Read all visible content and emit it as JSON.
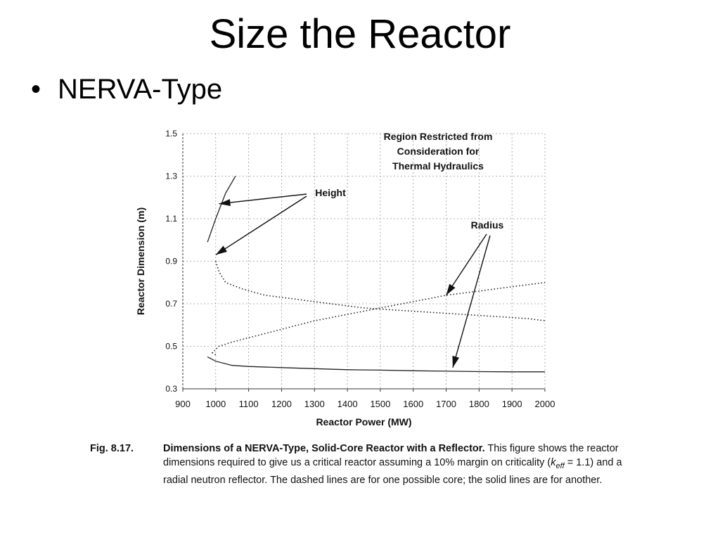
{
  "slide": {
    "title": "Size the Reactor",
    "bullet": "NERVA-Type"
  },
  "chart_data": {
    "type": "line",
    "xlabel": "Reactor Power (MW)",
    "ylabel": "Reactor Dimension (m)",
    "xlim": [
      900,
      2000
    ],
    "ylim": [
      0.3,
      1.5
    ],
    "x_ticks": [
      "900",
      "1000",
      "1100",
      "1200",
      "1300",
      "1400",
      "1500",
      "1600",
      "1700",
      "1800",
      "1900",
      "2000"
    ],
    "y_ticks": [
      "0.3",
      "0.5",
      "0.7",
      "0.9",
      "1.1",
      "1.3",
      "1.5"
    ],
    "grid": true,
    "series": [
      {
        "style": "dashed",
        "x": [
          1000,
          1010,
          1030,
          1080,
          1150,
          1250,
          1350,
          1450,
          1550,
          1650,
          1750,
          1850,
          1950,
          2000
        ],
        "y": [
          0.9,
          0.85,
          0.8,
          0.77,
          0.74,
          0.72,
          0.7,
          0.68,
          0.67,
          0.66,
          0.65,
          0.64,
          0.63,
          0.62
        ]
      },
      {
        "style": "dashed",
        "x": [
          1000,
          990,
          1010,
          1050,
          1100,
          1200,
          1300,
          1400,
          1500,
          1600,
          1700,
          1800,
          1900,
          2000
        ],
        "y": [
          0.46,
          0.47,
          0.5,
          0.52,
          0.54,
          0.58,
          0.62,
          0.65,
          0.68,
          0.71,
          0.74,
          0.76,
          0.78,
          0.8
        ]
      },
      {
        "style": "solid",
        "x": [
          975,
          1000,
          1030,
          1060
        ],
        "y": [
          0.99,
          1.1,
          1.22,
          1.3
        ]
      },
      {
        "style": "solid",
        "x": [
          975,
          1000,
          1050,
          1100,
          1200,
          1300,
          1400,
          1500,
          1600,
          1700,
          1800,
          1900,
          2000
        ],
        "y": [
          0.45,
          0.43,
          0.41,
          0.405,
          0.4,
          0.395,
          0.39,
          0.388,
          0.385,
          0.383,
          0.381,
          0.38,
          0.38
        ]
      }
    ],
    "annotations": {
      "region_lines": [
        "Region Restricted from",
        "Consideration for",
        "Thermal Hydraulics"
      ],
      "height_label": "Height",
      "radius_label": "Radius",
      "height_arrow_tips": [
        [
          1010,
          1.17
        ],
        [
          1000,
          0.93
        ]
      ],
      "radius_arrow_tips": [
        [
          1700,
          0.74
        ],
        [
          1720,
          0.4
        ]
      ]
    }
  },
  "caption": {
    "figure_label": "Fig. 8.17.",
    "heading": "Dimensions of a NERVA-Type, Solid-Core Reactor with a Reflector.",
    "text_before": " This figure shows the reactor dimensions required to give us a critical reactor assuming a 10% margin on criticality (",
    "keff_symbol": "k",
    "keff_subscript": "eff",
    "text_after": " = 1.1) and a radial neutron reflector. The dashed lines are for one possible core; the solid lines are for another."
  }
}
